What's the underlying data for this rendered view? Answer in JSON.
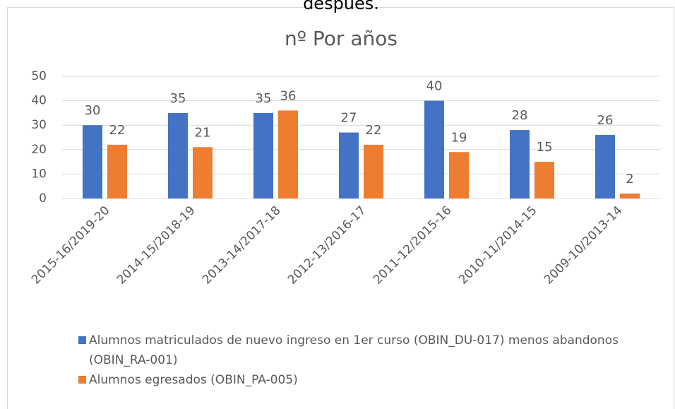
{
  "caption": "después.",
  "chart_data": {
    "type": "bar",
    "title": "nº Por años",
    "categories": [
      "2015-16/2019-20",
      "2014-15/2018-19",
      "2013-14/2017-18",
      "2012-13/2016-17",
      "2011-12/2015-16",
      "2010-11/2014-15",
      "2009-10/2013-14"
    ],
    "series": [
      {
        "name": "Alumnos matriculados de nuevo ingreso en 1er curso (OBIN_DU-017) menos abandonos (OBIN_RA-001)",
        "color": "#4472c4",
        "values": [
          30,
          35,
          35,
          27,
          40,
          28,
          26
        ]
      },
      {
        "name": "Alumnos egresados (OBIN_PA-005)",
        "color": "#ed7d31",
        "values": [
          22,
          21,
          36,
          22,
          19,
          15,
          2
        ]
      }
    ],
    "ylim": [
      0,
      50
    ],
    "yticks": [
      0,
      10,
      20,
      30,
      40,
      50
    ],
    "grid": true,
    "legend": "bottom"
  }
}
